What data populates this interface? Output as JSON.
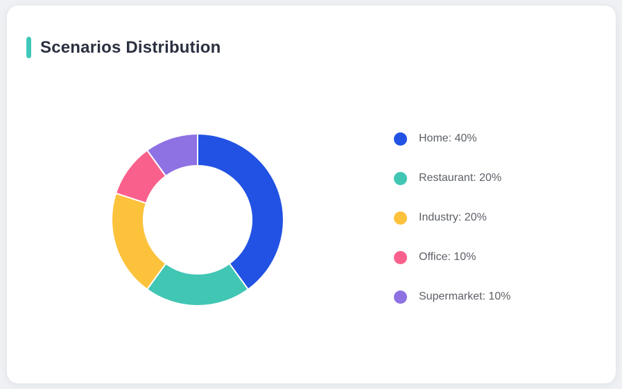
{
  "page": {
    "background_color": "#EFF1F4",
    "card_background_color": "#FFFFFF"
  },
  "header": {
    "title": "Scenarios Distribution",
    "accent_color": "#3EC8B9",
    "title_color": "#2B3040"
  },
  "chart_data": {
    "type": "pie",
    "variant": "donut",
    "title": "Scenarios Distribution",
    "categories": [
      "Home",
      "Restaurant",
      "Industry",
      "Office",
      "Supermarket"
    ],
    "values": [
      40,
      20,
      20,
      10,
      10
    ],
    "unit": "%",
    "colors": [
      "#2152E3",
      "#41C6B4",
      "#FDC23C",
      "#F9618C",
      "#8E71E3"
    ],
    "start_angle_deg": 0,
    "direction": "clockwise",
    "inner_radius_ratio": 0.63,
    "segment_gap_color": "#FFFFFF",
    "legend_position": "right",
    "legend": [
      {
        "label": "Home: 40%"
      },
      {
        "label": "Restaurant: 20%"
      },
      {
        "label": "Industry: 20%"
      },
      {
        "label": "Office: 10%"
      },
      {
        "label": "Supermarket: 10%"
      }
    ]
  }
}
